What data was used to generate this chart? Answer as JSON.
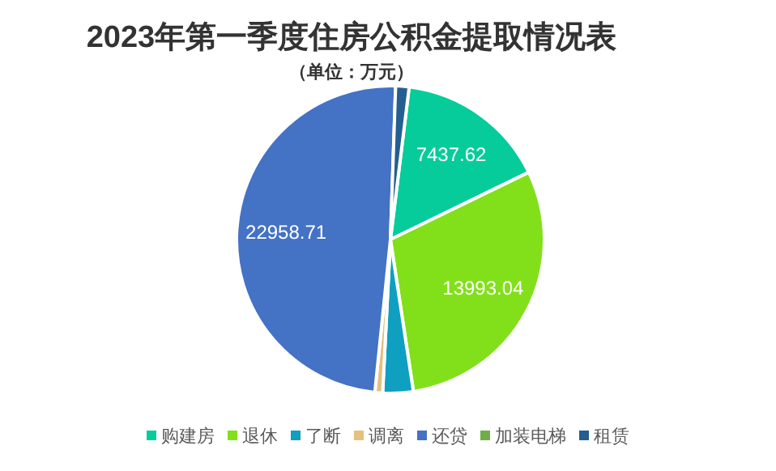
{
  "chart_data": {
    "type": "pie",
    "title": "2023年第一季度住房公积金提取情况表",
    "subtitle": "（单位：万元）",
    "categories": [
      "购建房",
      "退休",
      "了断",
      "调离",
      "还贷",
      "加装电梯",
      "租赁"
    ],
    "values": [
      7437.62,
      13993.04,
      1500,
      380,
      22958.71,
      null,
      660
    ],
    "value_labels": [
      "7437.62",
      "13993.04",
      null,
      null,
      "22958.71",
      null,
      null
    ],
    "colors": [
      "#05cc9a",
      "#82e01a",
      "#0e9fc1",
      "#e6c07e",
      "#4472c4",
      "#70ad47",
      "#255e91"
    ],
    "legend": "bottom"
  }
}
